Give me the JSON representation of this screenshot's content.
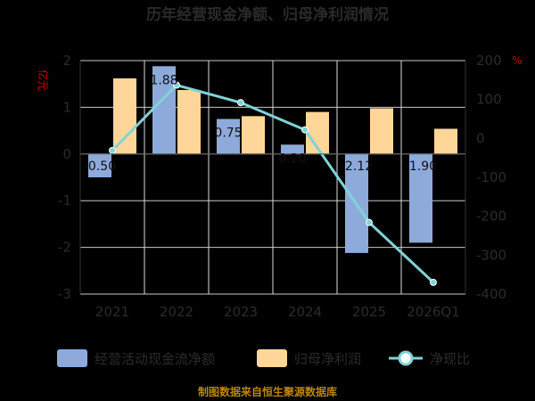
{
  "chart_data": {
    "type": "bar",
    "title": "历年经营现金净额、归母净利润情况",
    "categories": [
      "2021",
      "2022",
      "2023",
      "2024",
      "2025",
      "2026Q1"
    ],
    "left_axis": {
      "unit": "亿元",
      "ylim": [
        -3,
        2
      ],
      "ticks": [
        "2",
        "1",
        "0",
        "-1",
        "-2",
        "-3"
      ]
    },
    "right_axis": {
      "unit": "%",
      "ylim": [
        -400,
        200
      ],
      "ticks": [
        "200",
        "100",
        "0",
        "-100",
        "-200",
        "-300",
        "-400"
      ]
    },
    "series": [
      {
        "name": "经营活动现金流净额",
        "type": "bar",
        "axis": "left",
        "color": "#8eaadb",
        "values": [
          -0.5,
          1.88,
          0.75,
          0.2,
          -2.12,
          -1.9
        ],
        "labels": [
          "-0.50",
          "1.88",
          "0.75",
          "0.20",
          "-2.12",
          "-1.90"
        ]
      },
      {
        "name": "归母净利润",
        "type": "bar",
        "axis": "left",
        "color": "#ffd699",
        "values": [
          1.62,
          1.37,
          0.81,
          0.9,
          0.98,
          0.54
        ]
      },
      {
        "name": "净现比",
        "type": "line",
        "axis": "right",
        "color": "#7fd3d6",
        "values": [
          -31,
          137,
          92,
          22,
          -216,
          -370
        ]
      }
    ],
    "legend_position": "bottom",
    "grid": true
  },
  "footer": {
    "source": "制图数据来自恒生聚源数据库"
  }
}
